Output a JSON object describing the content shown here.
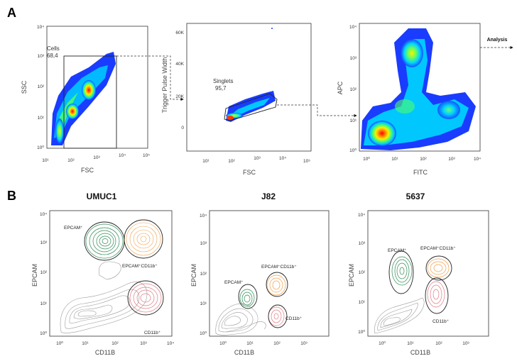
{
  "panel_a": {
    "letter": "A",
    "analysis_label": "Analysis",
    "plot1": {
      "xlabel": "FSC",
      "ylabel": "SSC",
      "xticks": [
        "10¹",
        "10²",
        "10³",
        "10⁴",
        "10⁵"
      ],
      "yticks": [
        "10⁰",
        "10¹",
        "10²",
        "10³",
        "10⁴"
      ],
      "gate_name": "Cells",
      "gate_value": "68,4"
    },
    "plot2": {
      "xlabel": "FSC",
      "ylabel": "Trigger Pulse Width",
      "xticks": [
        "10¹",
        "10²",
        "10³",
        "10⁴",
        "10⁵"
      ],
      "yticks": [
        "0",
        "20K",
        "40K",
        "60K"
      ],
      "gate_name": "Singlets",
      "gate_value": "95,7"
    },
    "plot3": {
      "xlabel": "FITC",
      "ylabel": "APC",
      "xticks": [
        "10⁰",
        "10¹",
        "10²",
        "10³",
        "10⁴"
      ],
      "yticks": [
        "10⁰",
        "10¹",
        "10²",
        "10³",
        "10⁴"
      ]
    }
  },
  "panel_b": {
    "letter": "B",
    "plots": [
      {
        "title": "UMUC1",
        "xlabel": "CD11B",
        "ylabel": "EPCAM",
        "ticks": [
          "10⁰",
          "10¹",
          "10²",
          "10³",
          "10⁴"
        ],
        "label_epcam": "EPCAM⁺",
        "label_double": "EPCAM⁺CD11b⁺",
        "label_cd11b": "CD11b⁺"
      },
      {
        "title": "J82",
        "xlabel": "CD11B",
        "ylabel": "EPCAM",
        "ticks": [
          "10⁰",
          "10¹",
          "10²",
          "10³",
          "10⁴"
        ],
        "label_epcam": "EPCAM⁺",
        "label_double": "EPCAM⁺CD11b⁺",
        "label_cd11b": "CD11b⁺"
      },
      {
        "title": "5637",
        "xlabel": "CD11B",
        "ylabel": "EPCAM",
        "ticks": [
          "10⁰",
          "10¹",
          "10²",
          "10³",
          "10⁴"
        ],
        "label_epcam": "EPCAM⁺",
        "label_double": "EPCAM⁺CD11b⁺",
        "label_cd11b": "CD11b⁺"
      }
    ]
  },
  "chart_data": [
    {
      "type": "scatter",
      "title": "",
      "xlabel": "FSC",
      "ylabel": "SSC",
      "xscale": "log",
      "yscale": "log",
      "xlim": [
        1,
        100000
      ],
      "ylim": [
        1,
        10000
      ],
      "gates": [
        {
          "name": "Cells",
          "percent": 68.4
        }
      ]
    },
    {
      "type": "scatter",
      "title": "",
      "xlabel": "FSC",
      "ylabel": "Trigger Pulse Width",
      "xscale": "log",
      "yscale": "linear",
      "xlim": [
        1,
        100000
      ],
      "ylim": [
        0,
        65000
      ],
      "gates": [
        {
          "name": "Singlets",
          "percent": 95.7
        }
      ]
    },
    {
      "type": "scatter",
      "title": "",
      "xlabel": "FITC",
      "ylabel": "APC",
      "xscale": "log",
      "yscale": "log",
      "xlim": [
        1,
        10000
      ],
      "ylim": [
        1,
        10000
      ]
    },
    {
      "type": "contour",
      "title": "UMUC1",
      "xlabel": "CD11B",
      "ylabel": "EPCAM",
      "xscale": "log",
      "yscale": "log",
      "populations": [
        "EPCAM⁺",
        "EPCAM⁺CD11b⁺",
        "CD11b⁺"
      ]
    },
    {
      "type": "contour",
      "title": "J82",
      "xlabel": "CD11B",
      "ylabel": "EPCAM",
      "xscale": "log",
      "yscale": "log",
      "populations": [
        "EPCAM⁺",
        "EPCAM⁺CD11b⁺",
        "CD11b⁺"
      ]
    },
    {
      "type": "contour",
      "title": "5637",
      "xlabel": "CD11B",
      "ylabel": "EPCAM",
      "xscale": "log",
      "yscale": "log",
      "populations": [
        "EPCAM⁺",
        "EPCAM⁺CD11b⁺",
        "CD11b⁺"
      ]
    }
  ],
  "colors": {
    "epcam": "#2e8b57",
    "double": "#f0a050",
    "cd11b": "#e07a84",
    "neg": "#999999",
    "density_low": "#1a3cff",
    "density_high": "#ff1a00"
  }
}
